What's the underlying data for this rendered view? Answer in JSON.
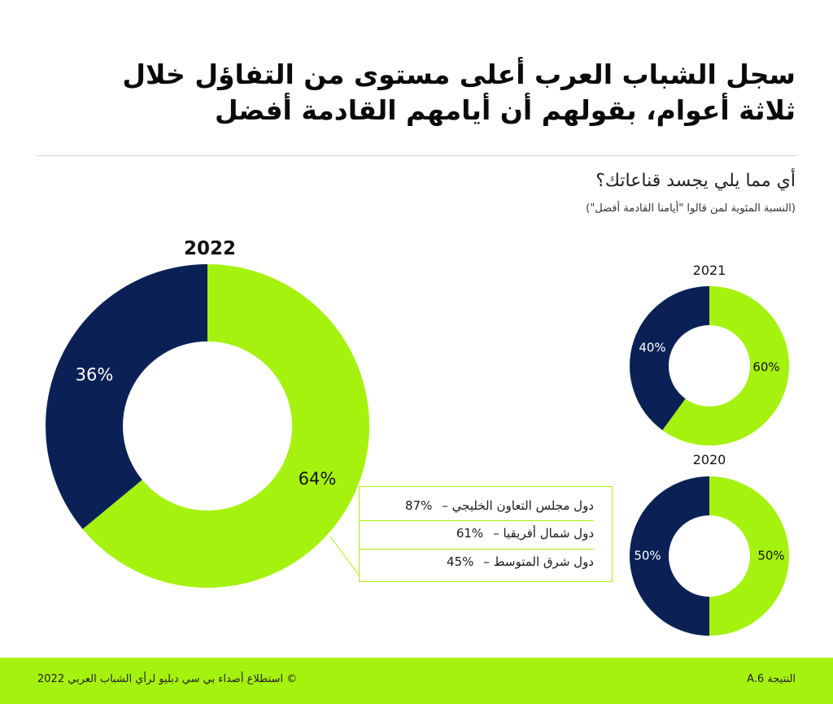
{
  "header": {
    "title_line1": "سجل الشباب العرب أعلى مستوى من التفاؤل خلال",
    "title_line2": "ثلاثة أعوام، بقولهم أن أيامهم القادمة أفضل",
    "question": "أي مما يلي يجسد قناعاتك؟",
    "subquestion": "(النسبة المئوية لمن قالوا \"أيامنا القادمة أفضل\")"
  },
  "colors": {
    "green": "#a6f20f",
    "navy": "#0b2156"
  },
  "chart_data": [
    {
      "type": "pie",
      "title": "2022",
      "slices": [
        {
          "label": "64%",
          "value": 64,
          "color": "#a6f20f"
        },
        {
          "label": "36%",
          "value": 36,
          "color": "#0b2156"
        }
      ]
    },
    {
      "type": "pie",
      "title": "2021",
      "slices": [
        {
          "label": "60%",
          "value": 60,
          "color": "#a6f20f"
        },
        {
          "label": "40%",
          "value": 40,
          "color": "#0b2156"
        }
      ]
    },
    {
      "type": "pie",
      "title": "2020",
      "slices": [
        {
          "label": "50%",
          "value": 50,
          "color": "#a6f20f"
        },
        {
          "label": "50%",
          "value": 50,
          "color": "#0b2156"
        }
      ]
    }
  ],
  "breakdown": [
    {
      "label": "دول مجلس التعاون الخليجي –",
      "value": "87%"
    },
    {
      "label": "دول شمال أفريقيا –",
      "value": "61%"
    },
    {
      "label": "دول شرق المتوسط –",
      "value": "45%"
    }
  ],
  "footer": {
    "source": "© استطلاع أصداء بي سي دبليو لرأي الشباب العربي 2022",
    "result_id": "النتيجة A.6"
  }
}
